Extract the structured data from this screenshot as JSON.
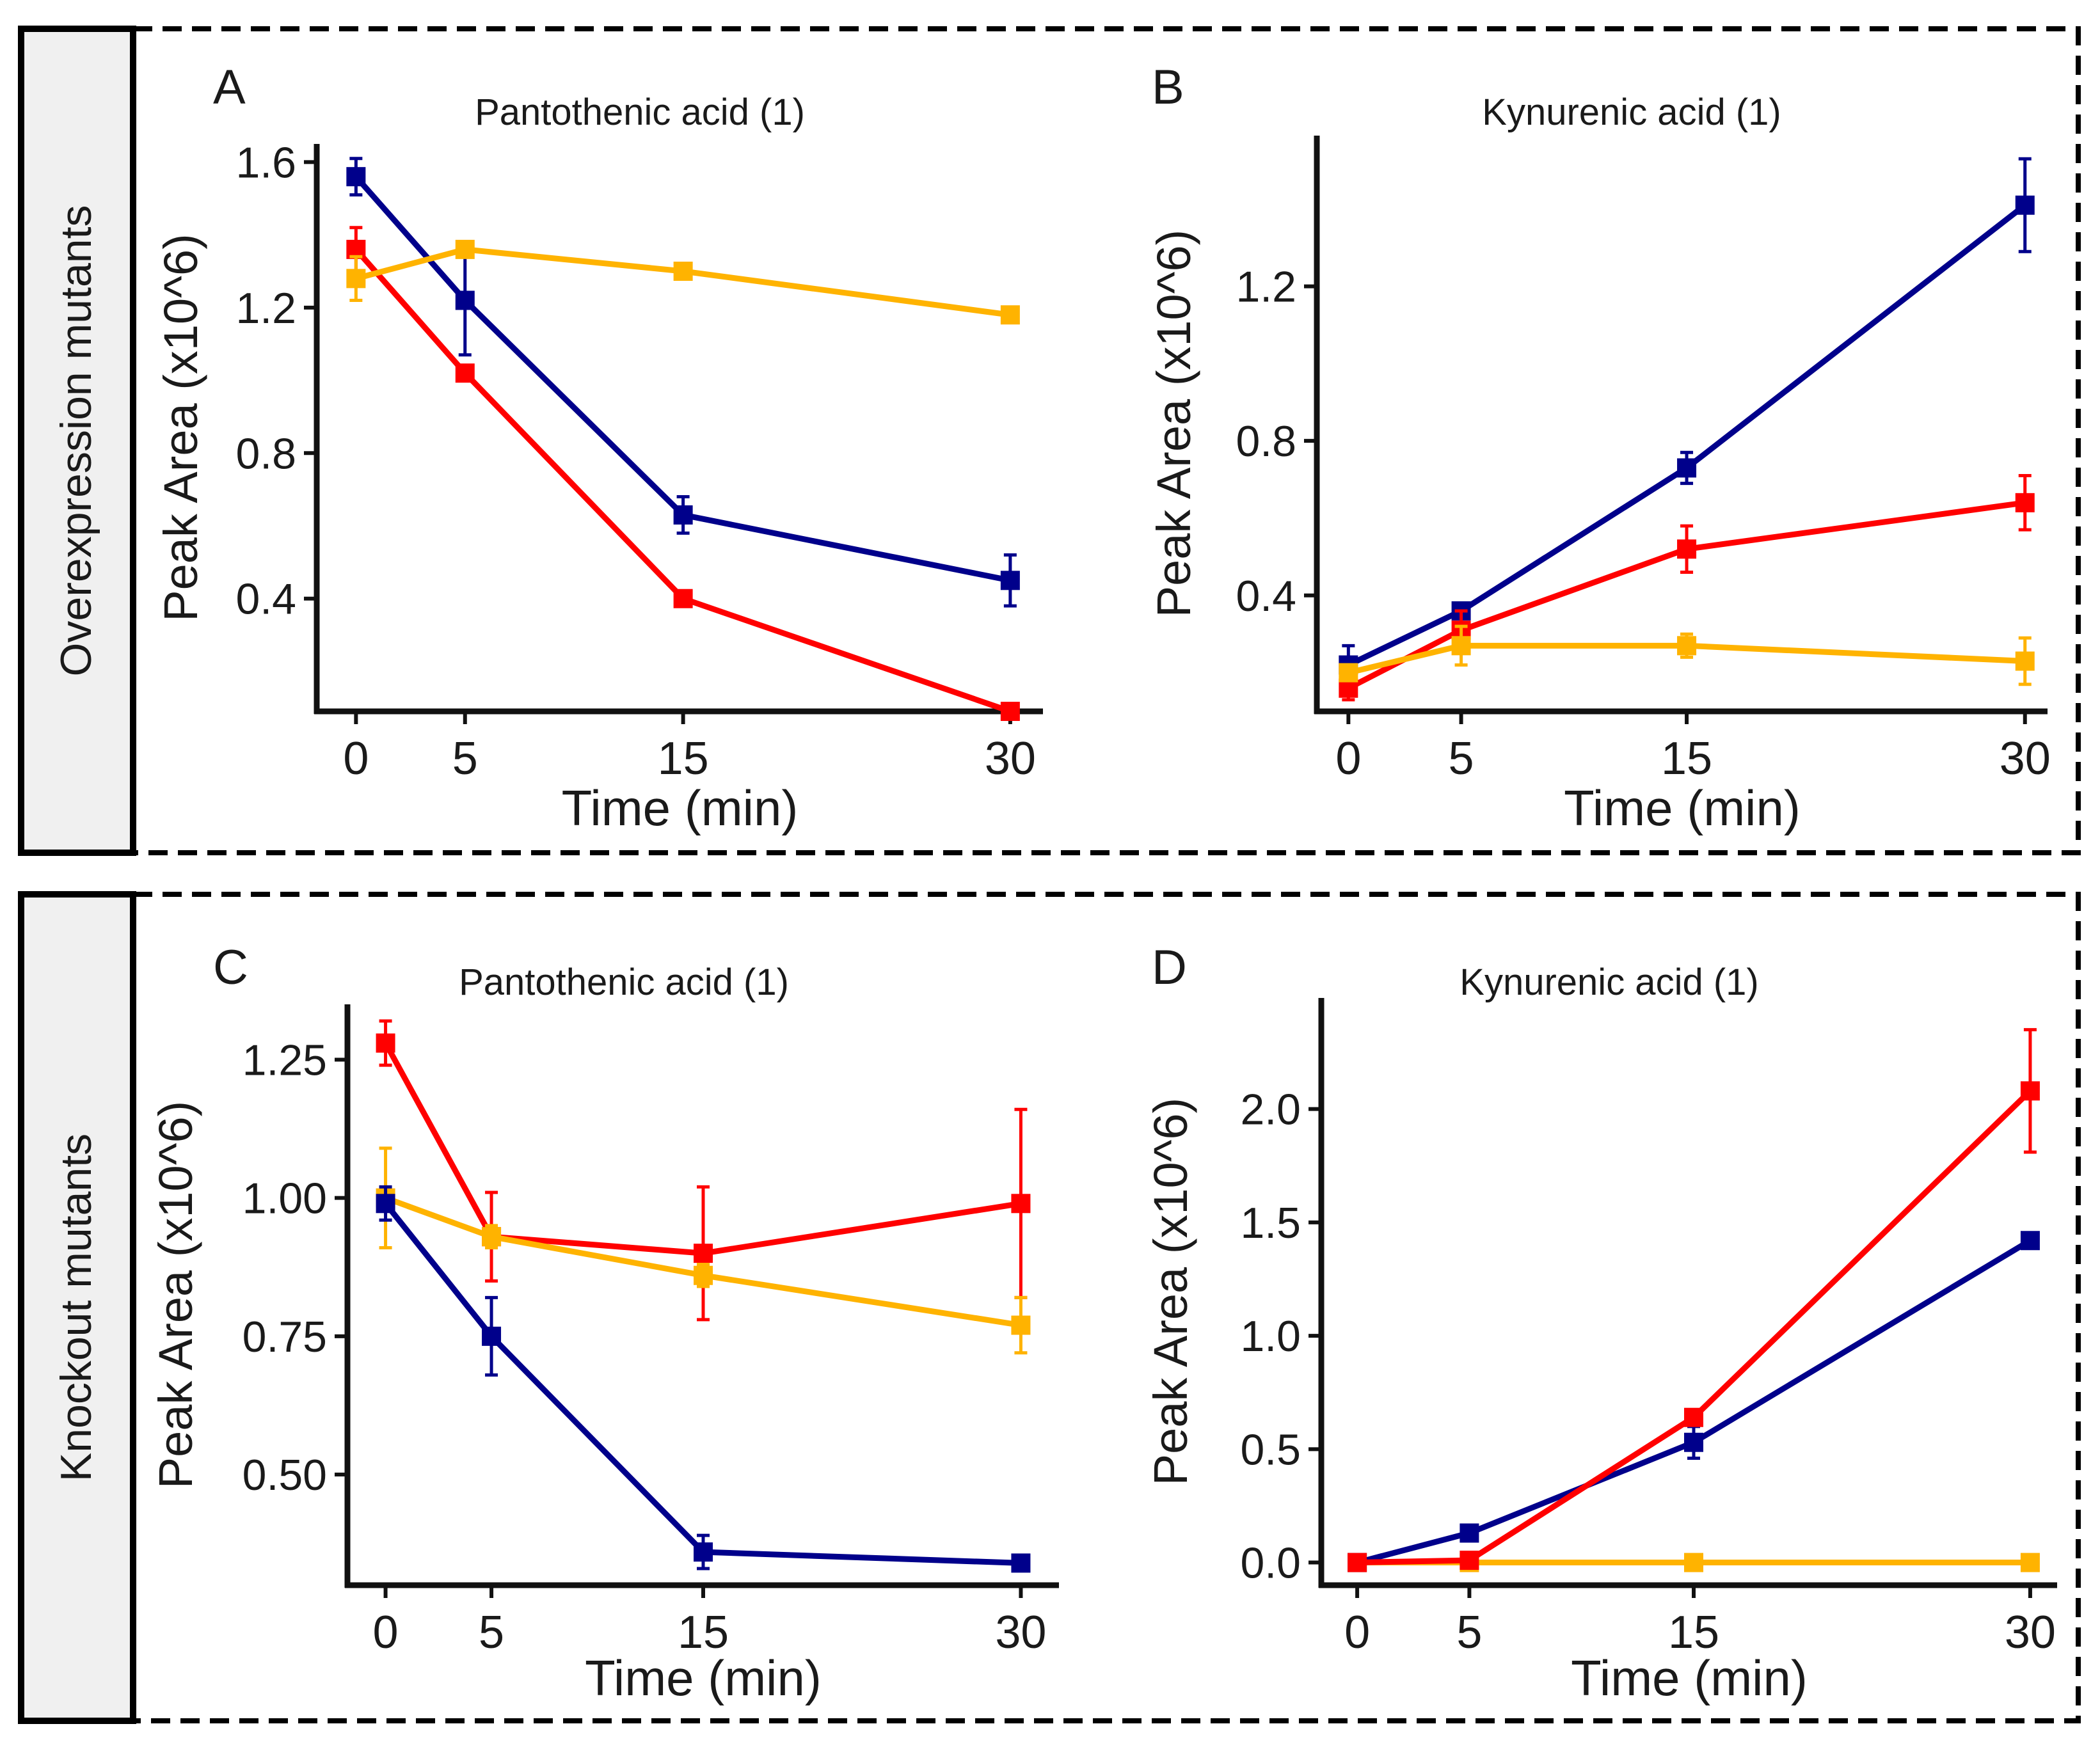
{
  "rows": [
    {
      "label": "Overexpression mutants"
    },
    {
      "label": "Knockout mutants"
    }
  ],
  "colors": {
    "blue": "#00008b",
    "red": "#ff0000",
    "orange": "#ffb300",
    "axis": "#111111",
    "row_label_bg": "#f0f0f0"
  },
  "chart_data": [
    {
      "panel": "A",
      "type": "line",
      "title": "Pantothenic acid (1)",
      "xlabel": "Time (min)",
      "ylabel": "Peak Area (x10^6)",
      "x": [
        0,
        5,
        15,
        30
      ],
      "xticks": [
        0,
        5,
        15,
        30
      ],
      "xtick_labels": [
        "0",
        "5",
        "15",
        "30"
      ],
      "xlim": [
        -1.8,
        31.5
      ],
      "yticks": [
        0.4,
        0.8,
        1.2,
        1.6
      ],
      "ytick_labels": [
        "0.4",
        "0.8",
        "1.2",
        "1.6"
      ],
      "ylim": [
        0.09,
        1.65
      ],
      "series": [
        {
          "name": "blue",
          "color": "#00008b",
          "values": [
            1.56,
            1.22,
            0.63,
            0.45
          ],
          "errors": [
            0.05,
            0.15,
            0.05,
            0.07
          ]
        },
        {
          "name": "red",
          "color": "#ff0000",
          "values": [
            1.36,
            1.02,
            0.4,
            0.09
          ],
          "errors": [
            0.06,
            0.02,
            0.01,
            0.01
          ]
        },
        {
          "name": "orange",
          "color": "#ffb300",
          "values": [
            1.28,
            1.36,
            1.3,
            1.18
          ],
          "errors": [
            0.06,
            0.02,
            0.02,
            0.01
          ]
        }
      ]
    },
    {
      "panel": "B",
      "type": "line",
      "title": "Kynurenic acid (1)",
      "xlabel": "Time (min)",
      "ylabel": "Peak Area (x10^6)",
      "x": [
        0,
        5,
        15,
        30
      ],
      "xticks": [
        0,
        5,
        15,
        30
      ],
      "xtick_labels": [
        "0",
        "5",
        "15",
        "30"
      ],
      "xlim": [
        -1.4,
        31.0
      ],
      "yticks": [
        0.4,
        0.8,
        1.2
      ],
      "ytick_labels": [
        "0.4",
        "0.8",
        "1.2"
      ],
      "ylim": [
        0.1,
        1.59
      ],
      "series": [
        {
          "name": "blue",
          "color": "#00008b",
          "values": [
            0.22,
            0.36,
            0.73,
            1.41
          ],
          "errors": [
            0.05,
            0.02,
            0.04,
            0.12
          ]
        },
        {
          "name": "red",
          "color": "#ff0000",
          "values": [
            0.16,
            0.31,
            0.52,
            0.64
          ],
          "errors": [
            0.03,
            0.05,
            0.06,
            0.07
          ]
        },
        {
          "name": "orange",
          "color": "#ffb300",
          "values": [
            0.2,
            0.27,
            0.27,
            0.23
          ],
          "errors": [
            0.02,
            0.05,
            0.03,
            0.06
          ]
        }
      ]
    },
    {
      "panel": "C",
      "type": "line",
      "title": "Pantothenic acid (1)",
      "xlabel": "Time (min)",
      "ylabel": "Peak Area (x10^6)",
      "x": [
        0,
        5,
        15,
        30
      ],
      "xticks": [
        0,
        5,
        15,
        30
      ],
      "xtick_labels": [
        "0",
        "5",
        "15",
        "30"
      ],
      "xlim": [
        -1.8,
        31.8
      ],
      "yticks": [
        0.5,
        0.75,
        1.0,
        1.25
      ],
      "ytick_labels": [
        "0.50",
        "0.75",
        "1.00",
        "1.25"
      ],
      "ylim": [
        0.3,
        1.35
      ],
      "series": [
        {
          "name": "red",
          "color": "#ff0000",
          "values": [
            1.28,
            0.93,
            0.9,
            0.99
          ],
          "errors": [
            0.04,
            0.08,
            0.12,
            0.17
          ]
        },
        {
          "name": "orange",
          "color": "#ffb300",
          "values": [
            1.0,
            0.93,
            0.86,
            0.77
          ],
          "errors": [
            0.09,
            0.02,
            0.02,
            0.05
          ]
        },
        {
          "name": "blue",
          "color": "#00008b",
          "values": [
            0.99,
            0.75,
            0.36,
            0.34
          ],
          "errors": [
            0.03,
            0.07,
            0.03,
            0.01
          ]
        }
      ]
    },
    {
      "panel": "D",
      "type": "line",
      "title": "Kynurenic acid (1)",
      "xlabel": "Time (min)",
      "ylabel": "Peak Area (x10^6)",
      "x": [
        0,
        5,
        15,
        30
      ],
      "xticks": [
        0,
        5,
        15,
        30
      ],
      "xtick_labels": [
        "0",
        "5",
        "15",
        "30"
      ],
      "xlim": [
        -1.6,
        31.2
      ],
      "yticks": [
        0.0,
        0.5,
        1.0,
        1.5,
        2.0
      ],
      "ytick_labels": [
        "0.0",
        "0.5",
        "1.0",
        "1.5",
        "2.0"
      ],
      "ylim": [
        -0.1,
        2.49
      ],
      "series": [
        {
          "name": "orange",
          "color": "#ffb300",
          "values": [
            0.0,
            0.0,
            0.0,
            0.0
          ],
          "errors": [
            0.0,
            0.0,
            0.0,
            0.0
          ]
        },
        {
          "name": "blue",
          "color": "#00008b",
          "values": [
            0.0,
            0.13,
            0.53,
            1.42
          ],
          "errors": [
            0.0,
            0.0,
            0.07,
            0.01
          ]
        },
        {
          "name": "red",
          "color": "#ff0000",
          "values": [
            0.0,
            0.01,
            0.64,
            2.08
          ],
          "errors": [
            0.0,
            0.0,
            0.0,
            0.27
          ]
        }
      ]
    }
  ]
}
